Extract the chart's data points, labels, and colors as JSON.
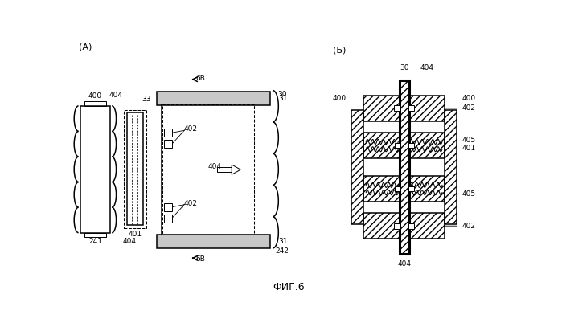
{
  "bg_color": "#ffffff",
  "title": "ФИГ.6",
  "label_A": "(A)",
  "label_B": "(Б)",
  "lw_thin": 0.7,
  "lw_med": 1.1,
  "lw_thick": 2.2
}
